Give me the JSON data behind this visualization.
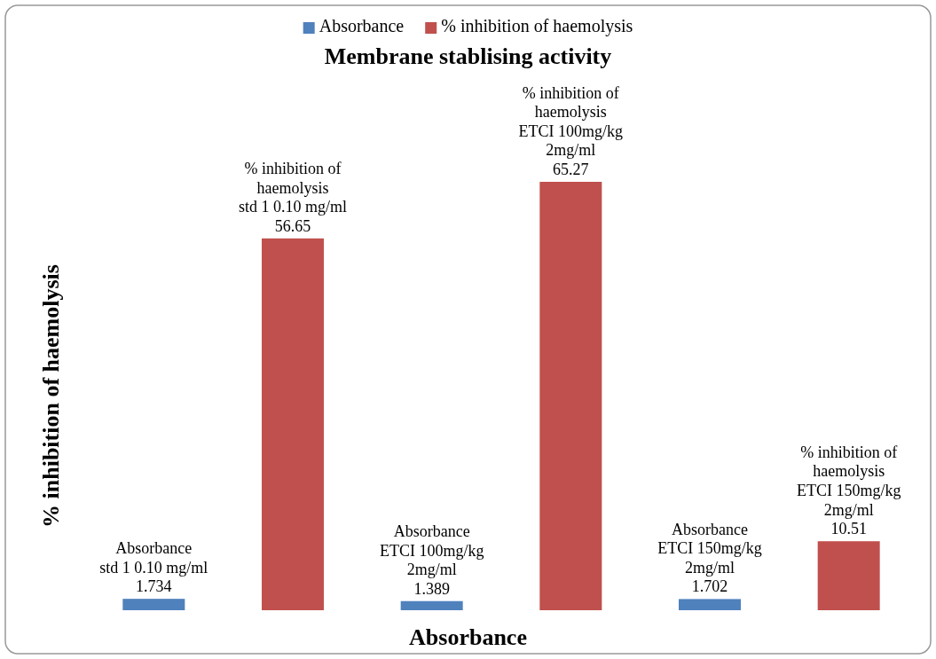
{
  "chart_data": {
    "type": "bar",
    "title": "Membrane stablising activity",
    "xlabel": "Absorbance",
    "ylabel": "% inhibition of haemolysis",
    "categories": [
      "std 1 0.10 mg/ml",
      "ETCI 100mg/kg 2mg/ml",
      "ETCI 150mg/kg 2mg/ml"
    ],
    "series": [
      {
        "name": "Absorbance",
        "color": "#4f81bd",
        "values": [
          1.734,
          1.389,
          1.702
        ]
      },
      {
        "name": "% inhibition of haemolysis",
        "color": "#c0504d",
        "values": [
          56.65,
          65.27,
          10.51
        ]
      }
    ],
    "data_labels": true,
    "legend": "top"
  }
}
